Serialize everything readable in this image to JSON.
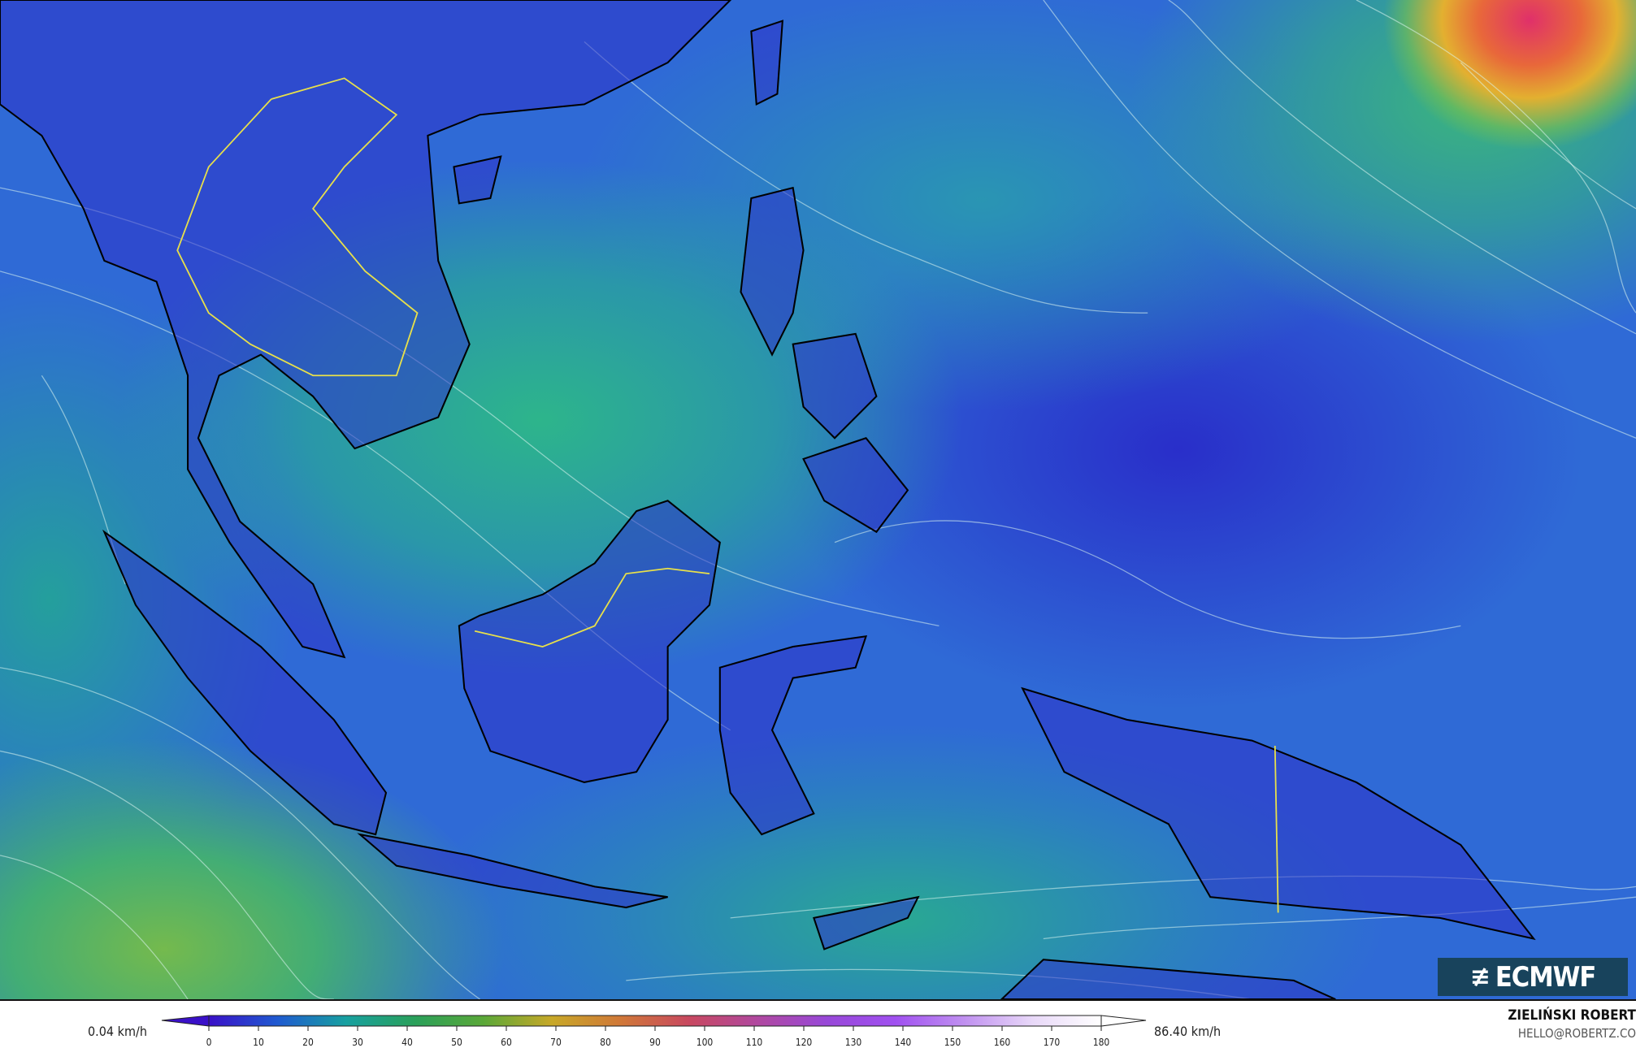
{
  "map": {
    "variable_range": {
      "min_label": "0.04 km/h",
      "max_label": "86.40 km/h"
    },
    "colorbar": {
      "ticks": [
        "0",
        "10",
        "20",
        "30",
        "40",
        "50",
        "60",
        "70",
        "80",
        "90",
        "100",
        "110",
        "120",
        "130",
        "140",
        "150",
        "160",
        "170",
        "180"
      ],
      "colors": [
        "#3a10c8",
        "#1f5ad0",
        "#17a0a0",
        "#2aa05a",
        "#5aa838",
        "#c8a828",
        "#d07838",
        "#c84860",
        "#b048a0",
        "#9848d8",
        "#a050f0",
        "#c090f0",
        "#e8d8f8",
        "#ffffff"
      ]
    },
    "logo": {
      "text": "ECMWF"
    },
    "author": {
      "name": "ZIELIŃSKI ROBERT",
      "email": "HELLO@ROBERTZ.CO"
    }
  }
}
